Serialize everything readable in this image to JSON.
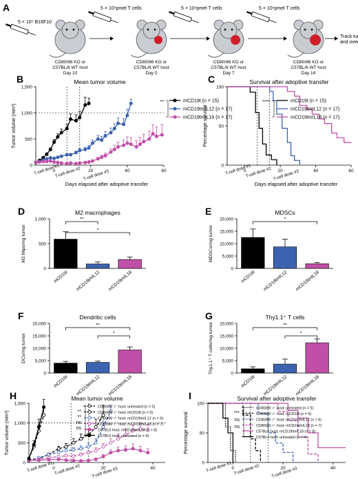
{
  "colors": {
    "black": "#000000",
    "blue": "#3d63b0",
    "pink": "#c04fa7",
    "mouse_body": "#c9ccd1",
    "tumor": "#d21d2a"
  },
  "panel_A": {
    "letter": "A",
    "inject_first": "5 × 10⁵ B16F10",
    "inject_cells": [
      "5 × 10⁶pmel T cells",
      "5 × 10⁶pmel T cells",
      "5 × 10⁶pmel T cells"
    ],
    "mice": [
      {
        "line1": "CD80/86 KO or",
        "line2": "C57BL/6 WT host",
        "day": "Day 10"
      },
      {
        "line1": "CD80/86 KO or",
        "line2": "C57BL/6 WT host",
        "day": "Day 0"
      },
      {
        "line1": "CD80/86 KO or",
        "line2": "C57BL/6 WT host",
        "day": "Day 7"
      },
      {
        "line1": "CD80/86 KO or",
        "line2": "C57BL/6 WT host",
        "day": "Day 14"
      }
    ],
    "track_text": [
      "Track tumor volume",
      "and overal survival"
    ]
  },
  "chart_data": [
    {
      "id": "B",
      "type": "line",
      "title": "Mean tumor volume",
      "ylabel": "Tumor volume (mm³)",
      "xlabel": "Days elapsed after adoptive transfer",
      "ylim": [
        0,
        1500
      ],
      "xlim": [
        -10,
        60
      ],
      "y_ticks": [
        "0",
        "500",
        "1,000",
        "1,500"
      ],
      "x_ticks": [
        "0",
        "20",
        "40",
        "60"
      ],
      "dose_labels": [
        "T-cell dose #1",
        "T-cell dose #2",
        "T-cell dose #3"
      ],
      "sig": "**",
      "series": [
        {
          "name": "mCD19t (n = 15)",
          "color": "#000000",
          "x": [
            -10,
            -8,
            -6,
            -4,
            -2,
            0,
            2,
            4,
            7,
            9,
            12,
            14,
            17,
            19
          ],
          "y": [
            50,
            90,
            140,
            210,
            300,
            440,
            540,
            620,
            700,
            880,
            850,
            910,
            1150,
            1180
          ],
          "err": [
            5,
            10,
            15,
            20,
            30,
            50,
            60,
            70,
            80,
            100,
            110,
            120,
            150,
            100
          ]
        },
        {
          "name": "mCD19tmIL12 (n = 17)",
          "color": "#3d63b0",
          "x": [
            -10,
            -8,
            -6,
            -4,
            -2,
            0,
            2,
            4,
            7,
            9,
            12,
            14,
            17,
            19,
            21,
            24,
            26,
            28,
            31,
            33,
            35,
            38,
            40,
            42
          ],
          "y": [
            50,
            70,
            100,
            120,
            140,
            130,
            150,
            170,
            200,
            200,
            240,
            280,
            300,
            330,
            420,
            500,
            480,
            560,
            620,
            700,
            800,
            780,
            950,
            1180
          ],
          "err": [
            5,
            10,
            10,
            15,
            15,
            15,
            15,
            20,
            25,
            25,
            30,
            40,
            40,
            50,
            60,
            70,
            70,
            80,
            90,
            90,
            100,
            110,
            120,
            80
          ]
        },
        {
          "name": "mCD19tmIL18 (n = 17)",
          "color": "#c04fa7",
          "x": [
            -10,
            -8,
            -6,
            -4,
            -2,
            0,
            2,
            4,
            7,
            9,
            12,
            14,
            17,
            19,
            21,
            24,
            26,
            28,
            31,
            33,
            35,
            38,
            40,
            42,
            45,
            47,
            49,
            52,
            54,
            56,
            59
          ],
          "y": [
            50,
            60,
            70,
            70,
            80,
            60,
            50,
            40,
            30,
            40,
            30,
            40,
            50,
            60,
            80,
            120,
            150,
            180,
            250,
            300,
            350,
            380,
            420,
            400,
            350,
            400,
            450,
            500,
            600,
            550,
            580
          ],
          "err": [
            5,
            5,
            5,
            10,
            10,
            10,
            10,
            10,
            10,
            10,
            10,
            10,
            15,
            20,
            20,
            30,
            40,
            50,
            60,
            80,
            90,
            100,
            120,
            130,
            120,
            130,
            140,
            150,
            170,
            180,
            200
          ]
        }
      ]
    },
    {
      "id": "C",
      "type": "line",
      "title": "Survival after adoptive transfer",
      "ylabel": "Percentage survival",
      "xlabel": "Days elapsed after adoptive transfer",
      "ylim": [
        0,
        100
      ],
      "xlim": [
        -10,
        60
      ],
      "y_ticks": [
        "0",
        "50",
        "100"
      ],
      "x_ticks": [
        "0",
        "20",
        "40",
        "60"
      ],
      "dose_labels": [
        "T-cell dose #1",
        "T-cell dose #2",
        "T-cell dose #3"
      ],
      "sig": "****",
      "series": [
        {
          "name": "mCD19t (n = 15)",
          "color": "#000000",
          "x": [
            -10,
            3,
            3,
            6,
            6,
            8,
            8,
            10,
            10,
            12,
            12,
            15,
            15,
            18,
            18
          ],
          "y": [
            100,
            100,
            93,
            93,
            67,
            67,
            47,
            47,
            27,
            27,
            13,
            13,
            7,
            7,
            0
          ]
        },
        {
          "name": "mCD19tmIL12 (n = 17)",
          "color": "#3d63b0",
          "x": [
            -10,
            14,
            14,
            16,
            16,
            18,
            18,
            21,
            21,
            24,
            24,
            26,
            26,
            28,
            28,
            31,
            31
          ],
          "y": [
            100,
            100,
            94,
            94,
            82,
            82,
            65,
            65,
            47,
            47,
            29,
            29,
            12,
            12,
            6,
            6,
            0
          ]
        },
        {
          "name": "mCD19tmIL18 (n = 17)",
          "color": "#c04fa7",
          "x": [
            -10,
            24,
            24,
            28,
            28,
            31,
            31,
            35,
            35,
            38,
            38,
            42,
            42,
            45,
            45,
            49,
            49,
            52,
            52,
            56,
            56,
            60
          ],
          "y": [
            100,
            100,
            94,
            94,
            88,
            88,
            76,
            76,
            71,
            71,
            65,
            65,
            59,
            59,
            53,
            53,
            41,
            41,
            35,
            35,
            29,
            29
          ]
        }
      ]
    },
    {
      "id": "D",
      "type": "bar",
      "title": "M2 macrophages",
      "ylabel": "M2 Mφs/mg tumor",
      "categories": [
        "mCD19t",
        "mCD19tmIL12",
        "mCD19tmIL18"
      ],
      "values": [
        590,
        90,
        180
      ],
      "err": [
        150,
        40,
        50
      ],
      "ylim": [
        0,
        1000
      ],
      "y_ticks": [
        "0",
        "500",
        "1,000"
      ],
      "sig": [
        "**",
        "*"
      ]
    },
    {
      "id": "E",
      "type": "bar",
      "title": "MDSCs",
      "ylabel": "MDSCs/mg tumor",
      "categories": [
        "mCD19t",
        "mCD19tmIL12",
        "mCD19tmIL18"
      ],
      "values": [
        12500,
        8700,
        1900
      ],
      "err": [
        3400,
        3100,
        500
      ],
      "ylim": [
        0,
        20000
      ],
      "y_ticks": [
        "0",
        "5,000",
        "10,000",
        "15,000",
        "20,000"
      ],
      "sig": [
        "*"
      ]
    },
    {
      "id": "F",
      "type": "bar",
      "title": "Dendritic cells",
      "ylabel": "DCs/mg tumor",
      "categories": [
        "mCD19t",
        "mCD19tmIL12",
        "mCD19tmIL18"
      ],
      "values": [
        4000,
        4300,
        9300
      ],
      "err": [
        700,
        500,
        1200
      ],
      "ylim": [
        0,
        20000
      ],
      "y_ticks": [
        "0",
        "5,000",
        "10,000",
        "15,000",
        "20,000"
      ],
      "sig": [
        "**",
        "*"
      ]
    },
    {
      "id": "G",
      "type": "bar",
      "title": "Thy1.1⁺ T cells",
      "ylabel": "Thy1.1⁺ T cells/mg tumor",
      "categories": [
        "mCD19t",
        "mCD19tmIL12",
        "mCD19tmIL18"
      ],
      "values": [
        1700,
        3600,
        12200
      ],
      "err": [
        800,
        2000,
        1500
      ],
      "ylim": [
        0,
        20000
      ],
      "y_ticks": [
        "0",
        "5,000",
        "10,000",
        "15,000",
        "20,000"
      ],
      "sig": [
        "**",
        "*"
      ]
    },
    {
      "id": "H",
      "type": "line",
      "title": "Mean tumor volume",
      "ylabel": "Tumor volume (mm³)",
      "xlabel": "Days elapsed after adoptive transfer",
      "ylim": [
        0,
        1500
      ],
      "xlim": [
        -10,
        45
      ],
      "y_ticks": [
        "0",
        "500",
        "1,000",
        "1,500"
      ],
      "x_ticks": [
        "0",
        "20",
        "40"
      ],
      "dose_labels": [
        "T-cell dose #1",
        "T-cell dose #2",
        "T-cell dose #3"
      ],
      "sig": [
        "**",
        "**",
        "ns",
        "ns"
      ],
      "series": [
        {
          "name": "CD80/86⁻/⁻ host: untreated (n = 5)",
          "color": "#000000",
          "style": "dash",
          "marker": "open",
          "x": [
            -10,
            -8,
            -6,
            -4
          ],
          "y": [
            100,
            400,
            800,
            1200
          ],
          "err": [
            20,
            80,
            150,
            200
          ]
        },
        {
          "name": "CD80/86⁻/⁻ host: mCD19t (n = 5)",
          "color": "#000000",
          "style": "dash",
          "marker": "open",
          "x": [
            -10,
            -6,
            -2,
            2,
            5,
            8,
            11,
            14,
            17,
            20
          ],
          "y": [
            50,
            100,
            200,
            350,
            400,
            500,
            600,
            700,
            900,
            1200
          ],
          "err": [
            5,
            20,
            40,
            60,
            80,
            100,
            120,
            150,
            200,
            250
          ]
        },
        {
          "name": "CD80/86⁻/⁻ host: mCD19tmIL12 (n = 6)",
          "color": "#3d63b0",
          "style": "dash",
          "marker": "open",
          "x": [
            -10,
            -6,
            -2,
            2,
            5,
            8,
            11,
            14,
            17,
            20,
            23
          ],
          "y": [
            60,
            120,
            200,
            260,
            300,
            320,
            350,
            400,
            500,
            900,
            1300
          ],
          "err": [
            10,
            20,
            30,
            40,
            60,
            60,
            70,
            90,
            100,
            150,
            150
          ]
        },
        {
          "name": "CD80/86⁻/⁻ host: mCD19tmIL18 (n = 7)",
          "color": "#c04fa7",
          "style": "dash",
          "marker": "open",
          "x": [
            -10,
            -6,
            -2,
            2,
            5,
            8,
            11,
            14,
            17,
            20,
            23,
            26,
            29,
            32,
            35,
            38
          ],
          "y": [
            50,
            80,
            120,
            150,
            170,
            160,
            200,
            250,
            300,
            400,
            500,
            600,
            700,
            800,
            850,
            820
          ],
          "err": [
            5,
            10,
            20,
            20,
            30,
            30,
            40,
            50,
            70,
            80,
            100,
            120,
            140,
            150,
            160,
            150
          ]
        },
        {
          "name": "C57BL6 host: mCD19tmIL18 (n = 8)",
          "color": "#c04fa7",
          "style": "solid",
          "marker": "filled",
          "x": [
            -10,
            -6,
            -2,
            2,
            5,
            8,
            11,
            14,
            17,
            20,
            23,
            26,
            29,
            32,
            35,
            38
          ],
          "y": [
            50,
            60,
            70,
            80,
            60,
            50,
            40,
            50,
            80,
            150,
            250,
            300,
            320,
            350,
            300,
            250
          ],
          "err": [
            5,
            10,
            10,
            10,
            10,
            10,
            10,
            20,
            30,
            50,
            70,
            90,
            100,
            120,
            110,
            100
          ]
        },
        {
          "name": "C57BL6 host: untreated (n = 4)",
          "color": "#000000",
          "style": "solid",
          "marker": "filled",
          "x": [
            -10,
            -8,
            -6,
            -4
          ],
          "y": [
            100,
            450,
            900,
            1400
          ],
          "err": [
            20,
            100,
            200,
            200
          ]
        }
      ]
    },
    {
      "id": "I",
      "type": "line",
      "title": "Survival after adoptive transfer",
      "ylabel": "Percentage survival",
      "xlabel": "Days elapsed after adoptive transfer",
      "ylim": [
        0,
        100
      ],
      "xlim": [
        -10,
        45
      ],
      "y_ticks": [
        "0",
        "50",
        "100"
      ],
      "x_ticks": [
        "0",
        "20",
        "40"
      ],
      "dose_labels": [
        "T-cell dose #1",
        "T-cell dose #2",
        "T-cell dose #3"
      ],
      "sig": [
        "***",
        "ns",
        "ns"
      ],
      "series": [
        {
          "name": "CD80/86⁻/⁻ host: untreated (n = 5)",
          "color": "#000000",
          "style": "dot",
          "x": [
            -10,
            -3,
            -3,
            -1,
            -1,
            1,
            1
          ],
          "y": [
            100,
            100,
            60,
            60,
            20,
            20,
            0
          ]
        },
        {
          "name": "CD80/86⁻/⁻ host: mCD19t (n = 5)",
          "color": "#000000",
          "style": "dash",
          "x": [
            -10,
            4,
            4,
            7,
            7,
            9,
            9,
            11,
            11
          ],
          "y": [
            100,
            100,
            80,
            80,
            40,
            40,
            20,
            20,
            0
          ]
        },
        {
          "name": "CD80/86⁻/⁻ host: mCD19tmIL12 (n = 6)",
          "color": "#3d63b0",
          "style": "dash",
          "x": [
            -10,
            10,
            10,
            14,
            14,
            17,
            17,
            20,
            20,
            24,
            24
          ],
          "y": [
            100,
            100,
            83,
            83,
            50,
            50,
            33,
            33,
            17,
            17,
            0
          ]
        },
        {
          "name": "CD80/86⁻/⁻ host: mCD19tmIL18 (n = 7)",
          "color": "#c04fa7",
          "style": "dash",
          "x": [
            -10,
            18,
            18,
            22,
            22,
            26,
            26,
            30,
            30,
            34,
            34
          ],
          "y": [
            100,
            100,
            86,
            86,
            71,
            71,
            43,
            43,
            14,
            14,
            0
          ]
        },
        {
          "name": "C57BL6 host: mCD19tmIL18 (n = 8)",
          "color": "#c04fa7",
          "style": "solid",
          "x": [
            -10,
            22,
            22,
            26,
            26,
            30,
            30,
            34,
            34,
            45
          ],
          "y": [
            100,
            100,
            88,
            88,
            75,
            75,
            50,
            50,
            25,
            25
          ]
        },
        {
          "name": "C57BL6 host: untreated (n = 4)",
          "color": "#000000",
          "style": "solid",
          "x": [
            -10,
            -4,
            -4,
            -2,
            -2,
            0,
            0
          ],
          "y": [
            100,
            100,
            75,
            75,
            50,
            50,
            0
          ]
        }
      ]
    }
  ]
}
